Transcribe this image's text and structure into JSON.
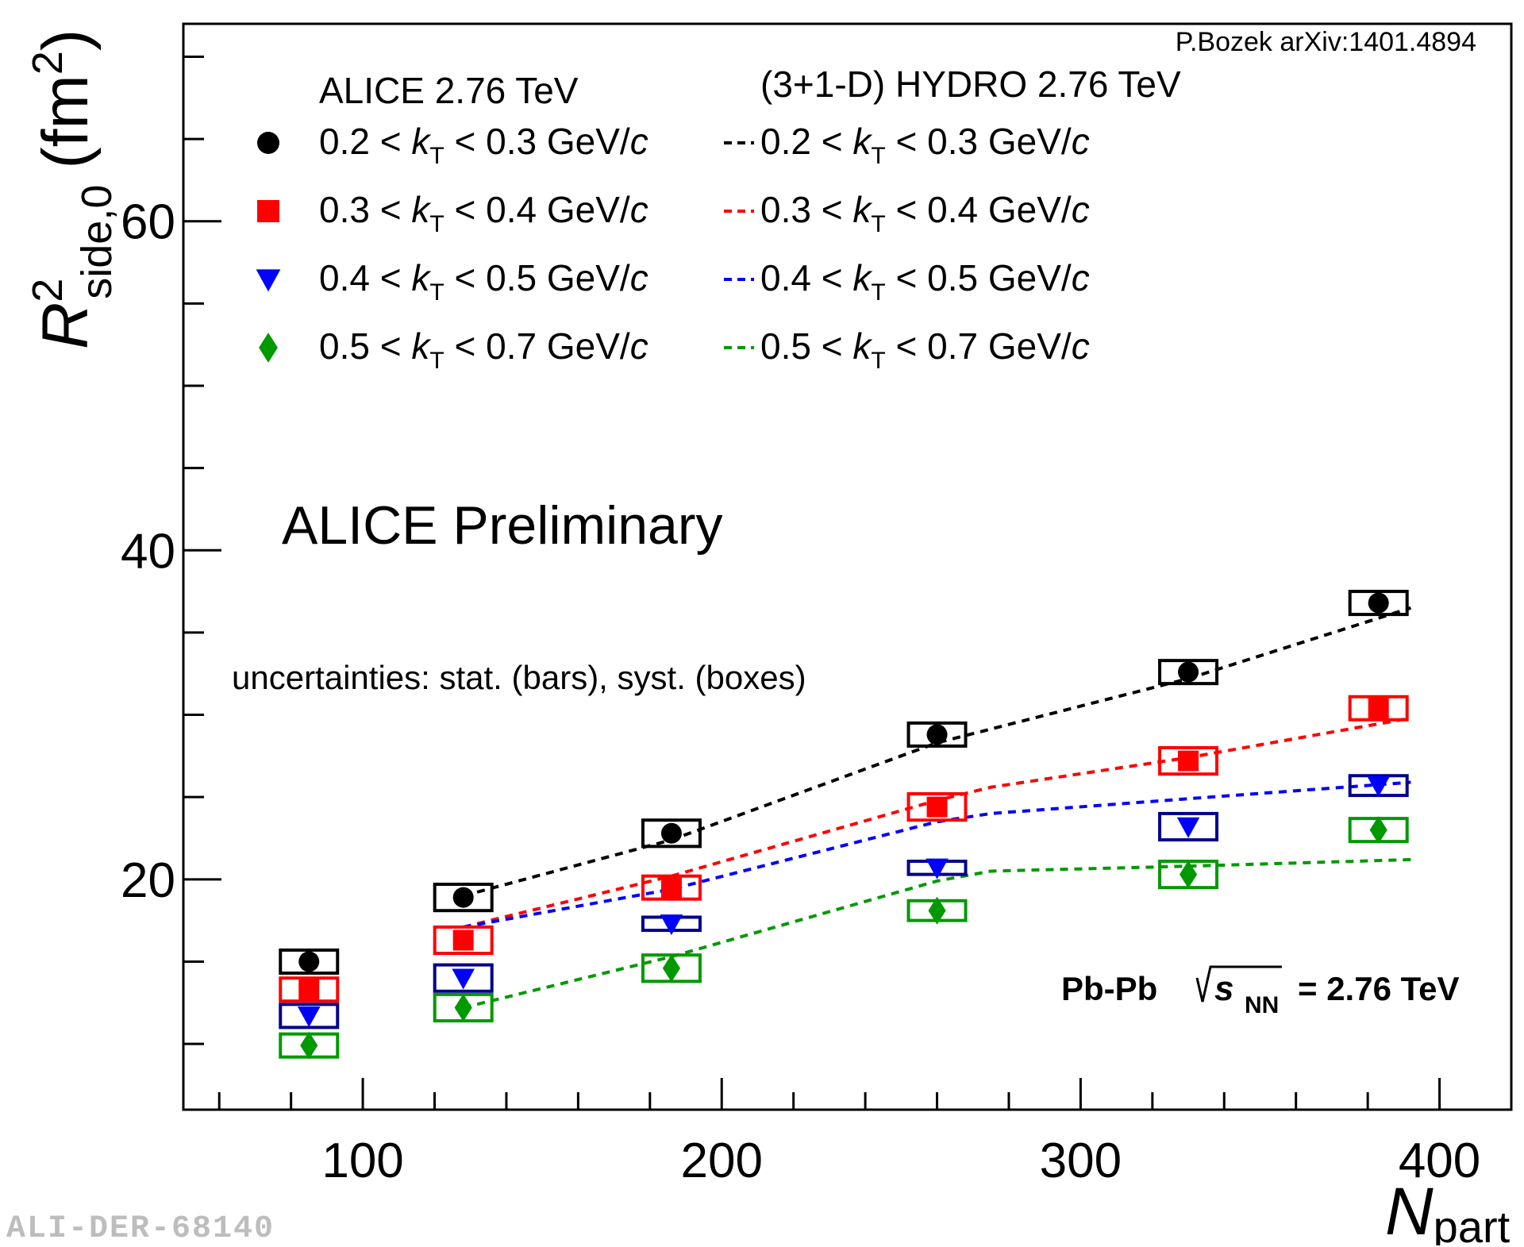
{
  "chart_data": {
    "type": "scatter",
    "title": "ALICE Preliminary",
    "xlabel": {
      "main": "N",
      "sub": "part"
    },
    "ylabel": {
      "main": "R",
      "sup": "2",
      "sub": "side,0",
      "unit": "(fm",
      "unit_sup": "2",
      "unit_close": ")"
    },
    "xlim": [
      50,
      420
    ],
    "ylim": [
      6,
      72
    ],
    "xticks": [
      100,
      200,
      300,
      400
    ],
    "yticks": [
      20,
      40,
      60
    ],
    "x_minor_step": 20,
    "y_minor_step": 5,
    "reference": "P.Bozek arXiv:1401.4894",
    "data_header": "ALICE 2.76 TeV",
    "model_header": "(3+1-D) HYDRO 2.76 TeV",
    "uncertainty_note": "uncertainties: stat. (bars), syst. (boxes)",
    "system_label": {
      "prefix": "Pb-Pb",
      "s": "s",
      "sub": "NN",
      "suffix": "= 2.76 TeV"
    },
    "series": [
      {
        "name": "0.2 < kT < 0.3 GeV/c",
        "label": {
          "lo": "0.2",
          "hi": "0.3"
        },
        "marker": "circle",
        "color": "#000000",
        "box_color": "#000000",
        "points": [
          {
            "x": 85,
            "y": 15.0,
            "syst": 0.7
          },
          {
            "x": 128,
            "y": 18.9,
            "syst": 0.8
          },
          {
            "x": 186,
            "y": 22.8,
            "syst": 0.8
          },
          {
            "x": 260,
            "y": 28.8,
            "syst": 0.7
          },
          {
            "x": 330,
            "y": 32.6,
            "syst": 0.7
          },
          {
            "x": 383,
            "y": 36.8,
            "syst": 0.7
          }
        ],
        "model": {
          "x": [
            128,
            186,
            260,
            330,
            392
          ],
          "y": [
            19.0,
            22.4,
            28.3,
            32.2,
            36.5
          ]
        }
      },
      {
        "name": "0.3 < kT < 0.4 GeV/c",
        "label": {
          "lo": "0.3",
          "hi": "0.4"
        },
        "marker": "square",
        "color": "#ff0000",
        "box_color": "#ff0000",
        "points": [
          {
            "x": 85,
            "y": 13.3,
            "syst": 0.7
          },
          {
            "x": 128,
            "y": 16.3,
            "syst": 0.8
          },
          {
            "x": 186,
            "y": 19.5,
            "syst": 0.7
          },
          {
            "x": 260,
            "y": 24.4,
            "syst": 0.8
          },
          {
            "x": 330,
            "y": 27.2,
            "syst": 0.8
          },
          {
            "x": 383,
            "y": 30.4,
            "syst": 0.7
          }
        ],
        "model": {
          "x": [
            128,
            186,
            260,
            275,
            330,
            392
          ],
          "y": [
            17.1,
            20.2,
            24.8,
            25.6,
            27.4,
            29.8
          ]
        }
      },
      {
        "name": "0.4 < kT < 0.5 GeV/c",
        "label": {
          "lo": "0.4",
          "hi": "0.5"
        },
        "marker": "triangle-down",
        "color": "#0000ff",
        "box_color": "#00008b",
        "points": [
          {
            "x": 85,
            "y": 11.7,
            "syst": 0.7
          },
          {
            "x": 128,
            "y": 14.0,
            "syst": 0.8
          },
          {
            "x": 186,
            "y": 17.3,
            "syst": 0.4
          },
          {
            "x": 260,
            "y": 20.7,
            "syst": 0.4
          },
          {
            "x": 330,
            "y": 23.2,
            "syst": 0.8
          },
          {
            "x": 383,
            "y": 25.7,
            "syst": 0.6
          }
        ],
        "model": {
          "x": [
            128,
            186,
            260,
            275,
            330,
            392
          ],
          "y": [
            17.1,
            19.4,
            23.5,
            24.0,
            24.9,
            25.9
          ]
        }
      },
      {
        "name": "0.5 < kT < 0.7 GeV/c",
        "label": {
          "lo": "0.5",
          "hi": "0.7"
        },
        "marker": "diamond",
        "color": "#009900",
        "box_color": "#009900",
        "points": [
          {
            "x": 85,
            "y": 9.9,
            "syst": 0.7
          },
          {
            "x": 128,
            "y": 12.2,
            "syst": 0.8
          },
          {
            "x": 186,
            "y": 14.6,
            "syst": 0.8
          },
          {
            "x": 260,
            "y": 18.1,
            "syst": 0.6
          },
          {
            "x": 330,
            "y": 20.3,
            "syst": 0.8
          },
          {
            "x": 383,
            "y": 23.0,
            "syst": 0.7
          }
        ],
        "model": {
          "x": [
            128,
            186,
            260,
            275,
            330,
            392
          ],
          "y": [
            12.2,
            15.3,
            19.9,
            20.5,
            20.8,
            21.2
          ]
        }
      }
    ],
    "watermark": "ALI-DER-68140"
  }
}
